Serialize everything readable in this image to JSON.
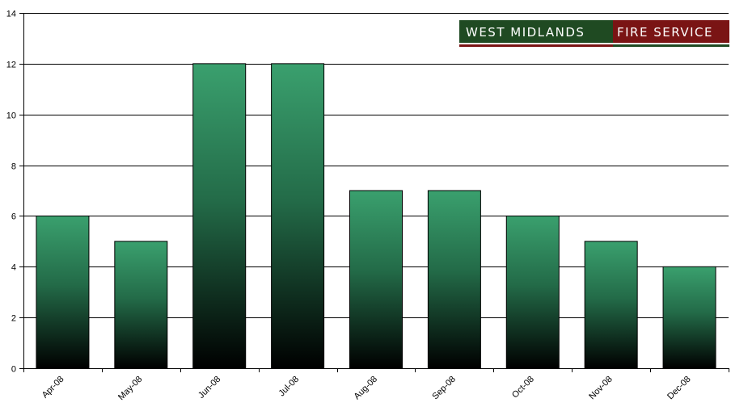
{
  "chart_data": {
    "type": "bar",
    "categories": [
      "Apr-08",
      "May-08",
      "Jun-08",
      "Jul-08",
      "Aug-08",
      "Sep-08",
      "Oct-08",
      "Nov-08",
      "Dec-08"
    ],
    "values": [
      6,
      5,
      12,
      12,
      7,
      7,
      6,
      5,
      4
    ],
    "ylim": [
      0,
      14
    ],
    "y_ticks": [
      0,
      2,
      4,
      6,
      8,
      10,
      12,
      14
    ],
    "grid": true,
    "bar_gradient": [
      "#3aa06e",
      "#000000"
    ]
  },
  "logo": {
    "part1": "WEST MIDLANDS",
    "part2": "FIRE SERVICE",
    "color_left": "#1f4a22",
    "color_right": "#7a1414"
  }
}
